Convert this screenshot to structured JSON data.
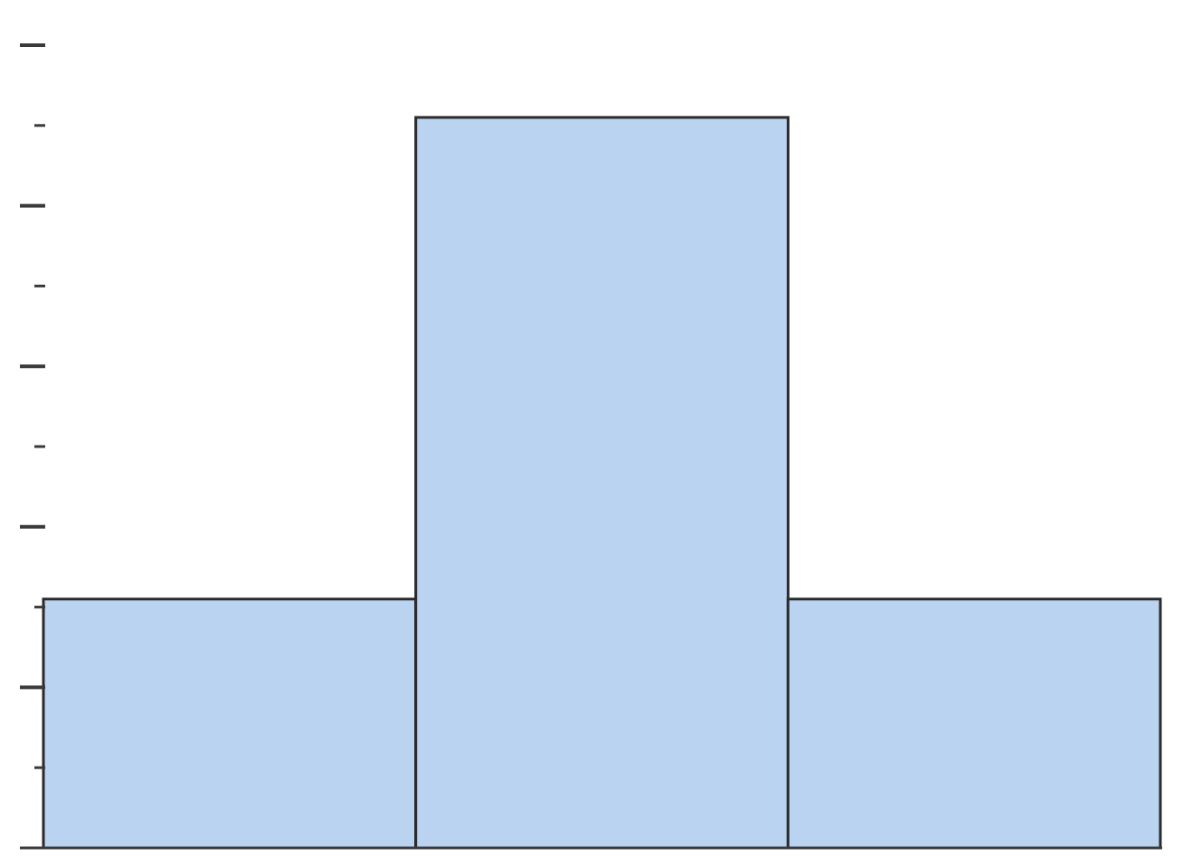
{
  "chart_data": {
    "type": "bar",
    "title": "",
    "xlabel": "",
    "ylabel": "",
    "categories": [
      "",
      "",
      ""
    ],
    "values": [
      3.1,
      9.1,
      3.1
    ],
    "ylim": [
      0,
      10
    ],
    "y_ticks_major": [
      0,
      2,
      4,
      6,
      8,
      10
    ],
    "y_ticks_minor": [
      1,
      3,
      5,
      7,
      9
    ],
    "bar_color": "#b9d3f0",
    "bar_edge_color": "#2b2b2b",
    "axis_color": "#3a3a3a",
    "grid": false,
    "legend": "none"
  }
}
